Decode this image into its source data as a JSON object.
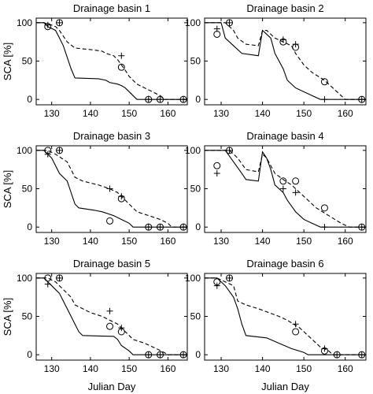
{
  "chart_data": [
    {
      "type": "line",
      "title": "Drainage basin 1",
      "ylabel": "SCA [%]",
      "xlim": [
        126,
        165
      ],
      "ylim": [
        -7,
        106
      ],
      "xticks": [
        130,
        140,
        150,
        160
      ],
      "yticks": [
        0,
        50,
        100
      ],
      "series": [
        {
          "color": "#000000",
          "style": "solid",
          "x": [
            126,
            128,
            129,
            131,
            132,
            133,
            134,
            135,
            136,
            142,
            144,
            145,
            147,
            148,
            149,
            150,
            151,
            152,
            165
          ],
          "values": [
            100,
            100,
            95,
            90,
            80,
            70,
            55,
            40,
            28,
            27,
            25,
            22,
            20,
            18,
            15,
            10,
            5,
            0,
            0
          ]
        },
        {
          "color": "#000000",
          "style": "dashed",
          "x": [
            126,
            128,
            130,
            131,
            132,
            134,
            136,
            140,
            143,
            144,
            146,
            147,
            148,
            149,
            150,
            151,
            152,
            154,
            156,
            158,
            159,
            165
          ],
          "values": [
            100,
            100,
            97,
            95,
            90,
            75,
            67,
            65,
            63,
            60,
            57,
            52,
            45,
            38,
            30,
            25,
            20,
            15,
            10,
            5,
            0,
            0
          ]
        },
        {
          "color": "#000000",
          "marker": "circle",
          "x": [
            129,
            132,
            148,
            155,
            158,
            164
          ],
          "values": [
            95,
            100,
            42,
            0,
            0,
            0
          ]
        },
        {
          "color": "#000000",
          "marker": "plus",
          "x": [
            129,
            132,
            148,
            155,
            158,
            164
          ],
          "values": [
            97,
            100,
            57,
            0,
            0,
            0
          ]
        }
      ]
    },
    {
      "type": "line",
      "title": "Drainage basin 2",
      "xlim": [
        126,
        165
      ],
      "ylim": [
        -7,
        106
      ],
      "xticks": [
        130,
        140,
        150,
        160
      ],
      "yticks": [
        0,
        50,
        100
      ],
      "series": [
        {
          "color": "#000000",
          "style": "solid",
          "x": [
            126,
            130,
            131,
            133,
            135,
            139,
            140,
            141,
            142,
            143,
            145,
            146,
            148,
            150,
            152,
            154,
            165
          ],
          "values": [
            100,
            100,
            80,
            70,
            60,
            57,
            90,
            85,
            80,
            60,
            40,
            25,
            15,
            10,
            5,
            0,
            0
          ]
        },
        {
          "color": "#000000",
          "style": "dashed",
          "x": [
            126,
            131,
            133,
            134,
            136,
            139,
            140,
            141,
            143,
            145,
            147,
            148,
            150,
            152,
            155,
            157,
            159,
            160,
            165
          ],
          "values": [
            100,
            100,
            90,
            80,
            72,
            70,
            90,
            90,
            80,
            75,
            70,
            60,
            45,
            35,
            25,
            15,
            5,
            0,
            0
          ]
        },
        {
          "color": "#000000",
          "marker": "circle",
          "x": [
            129,
            132,
            145,
            148,
            155,
            164
          ],
          "values": [
            85,
            100,
            75,
            68,
            23,
            0
          ]
        },
        {
          "color": "#000000",
          "marker": "plus",
          "x": [
            129,
            132,
            145,
            148,
            155,
            164
          ],
          "values": [
            92,
            100,
            78,
            72,
            0,
            0
          ]
        }
      ]
    },
    {
      "type": "line",
      "title": "Drainage basin 3",
      "ylabel": "SCA [%]",
      "xlim": [
        126,
        165
      ],
      "ylim": [
        -7,
        106
      ],
      "xticks": [
        130,
        140,
        150,
        160
      ],
      "yticks": [
        0,
        50,
        100
      ],
      "series": [
        {
          "color": "#000000",
          "style": "solid",
          "x": [
            126,
            128,
            130,
            132,
            134,
            135,
            136,
            137,
            141,
            143,
            146,
            148,
            150,
            151,
            165
          ],
          "values": [
            100,
            100,
            90,
            70,
            60,
            45,
            30,
            25,
            22,
            20,
            15,
            10,
            5,
            0,
            0
          ]
        },
        {
          "color": "#000000",
          "style": "dashed",
          "x": [
            126,
            129,
            131,
            134,
            136,
            138,
            142,
            145,
            147,
            148,
            150,
            152,
            155,
            158,
            160,
            161,
            165
          ],
          "values": [
            100,
            100,
            95,
            85,
            65,
            60,
            55,
            50,
            45,
            40,
            30,
            20,
            15,
            10,
            5,
            0,
            0
          ]
        },
        {
          "color": "#000000",
          "marker": "circle",
          "x": [
            129,
            132,
            145,
            148,
            155,
            158,
            164
          ],
          "values": [
            100,
            100,
            8,
            37,
            0,
            0,
            0
          ]
        },
        {
          "color": "#000000",
          "marker": "plus",
          "x": [
            129,
            132,
            145,
            148,
            155,
            158,
            164
          ],
          "values": [
            95,
            100,
            50,
            40,
            0,
            0,
            0
          ]
        }
      ]
    },
    {
      "type": "line",
      "title": "Drainage basin 4",
      "xlim": [
        126,
        165
      ],
      "ylim": [
        -7,
        106
      ],
      "xticks": [
        130,
        140,
        150,
        160
      ],
      "yticks": [
        0,
        50,
        100
      ],
      "series": [
        {
          "color": "#000000",
          "style": "solid",
          "x": [
            126,
            131,
            133,
            135,
            136,
            139,
            140,
            141,
            142,
            143,
            145,
            146,
            148,
            150,
            152,
            154,
            165
          ],
          "values": [
            100,
            100,
            85,
            70,
            62,
            60,
            98,
            90,
            75,
            55,
            45,
            35,
            20,
            10,
            5,
            0,
            0
          ]
        },
        {
          "color": "#000000",
          "style": "dashed",
          "x": [
            126,
            132,
            134,
            136,
            139,
            140,
            141,
            143,
            145,
            147,
            149,
            151,
            153,
            156,
            159,
            161,
            165
          ],
          "values": [
            100,
            100,
            90,
            75,
            72,
            95,
            90,
            70,
            62,
            55,
            45,
            35,
            25,
            15,
            5,
            0,
            0
          ]
        },
        {
          "color": "#000000",
          "marker": "circle",
          "x": [
            129,
            132,
            145,
            148,
            155,
            164
          ],
          "values": [
            80,
            100,
            60,
            60,
            25,
            0
          ]
        },
        {
          "color": "#000000",
          "marker": "plus",
          "x": [
            129,
            132,
            145,
            148,
            155,
            164
          ],
          "values": [
            70,
            100,
            50,
            45,
            0,
            0
          ]
        }
      ]
    },
    {
      "type": "line",
      "title": "Drainage basin 5",
      "ylabel": "SCA [%]",
      "xlabel": "Julian Day",
      "xlim": [
        126,
        165
      ],
      "ylim": [
        -7,
        106
      ],
      "xticks": [
        130,
        140,
        150,
        160
      ],
      "yticks": [
        0,
        50,
        100
      ],
      "series": [
        {
          "color": "#000000",
          "style": "solid",
          "x": [
            126,
            128,
            130,
            132,
            134,
            136,
            137,
            138,
            146,
            147,
            148,
            150,
            151,
            165
          ],
          "values": [
            100,
            100,
            90,
            80,
            60,
            40,
            30,
            25,
            24,
            20,
            12,
            5,
            0,
            0
          ]
        },
        {
          "color": "#000000",
          "style": "dashed",
          "x": [
            126,
            129,
            131,
            133,
            135,
            136,
            140,
            143,
            145,
            147,
            149,
            151,
            154,
            157,
            159,
            160,
            165
          ],
          "values": [
            100,
            100,
            95,
            85,
            75,
            65,
            55,
            50,
            45,
            40,
            30,
            20,
            15,
            8,
            3,
            0,
            0
          ]
        },
        {
          "color": "#000000",
          "marker": "circle",
          "x": [
            129,
            132,
            145,
            148,
            155,
            158,
            164
          ],
          "values": [
            100,
            100,
            37,
            30,
            0,
            0,
            0
          ]
        },
        {
          "color": "#000000",
          "marker": "plus",
          "x": [
            129,
            132,
            145,
            148,
            155,
            158,
            164
          ],
          "values": [
            92,
            100,
            57,
            35,
            0,
            0,
            0
          ]
        }
      ]
    },
    {
      "type": "line",
      "title": "Drainage basin 6",
      "xlabel": "Julian Day",
      "xlim": [
        126,
        165
      ],
      "ylim": [
        -7,
        106
      ],
      "xticks": [
        130,
        140,
        150,
        160
      ],
      "yticks": [
        0,
        50,
        100
      ],
      "series": [
        {
          "color": "#000000",
          "style": "solid",
          "x": [
            126,
            129,
            131,
            133,
            134,
            135,
            136,
            141,
            144,
            147,
            150,
            151,
            165
          ],
          "values": [
            100,
            100,
            90,
            75,
            60,
            40,
            25,
            22,
            15,
            8,
            3,
            0,
            0
          ]
        },
        {
          "color": "#000000",
          "style": "dashed",
          "x": [
            126,
            129,
            131,
            133,
            134,
            136,
            139,
            144,
            146,
            149,
            152,
            154,
            156,
            157,
            165
          ],
          "values": [
            100,
            100,
            95,
            90,
            70,
            65,
            60,
            50,
            45,
            35,
            20,
            10,
            5,
            0,
            0
          ]
        },
        {
          "color": "#000000",
          "marker": "circle",
          "x": [
            129,
            132,
            148,
            155,
            158,
            164
          ],
          "values": [
            95,
            100,
            30,
            5,
            0,
            0
          ]
        },
        {
          "color": "#000000",
          "marker": "plus",
          "x": [
            129,
            132,
            148,
            155,
            158,
            164
          ],
          "values": [
            90,
            100,
            40,
            8,
            0,
            0
          ]
        }
      ]
    }
  ]
}
